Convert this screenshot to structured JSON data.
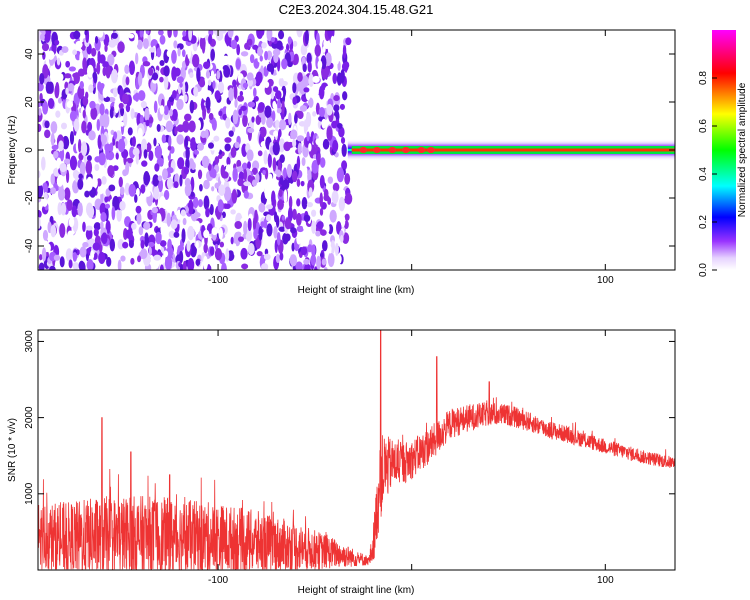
{
  "title": "C2E3.2024.304.15.48.G21",
  "chart_data": [
    {
      "type": "heatmap",
      "xlabel": "Height of straight line (km)",
      "ylabel": "Frequency (Hz)",
      "xlim": [
        -193,
        136
      ],
      "ylim": [
        -50,
        50
      ],
      "xticks": [
        -100,
        0,
        100
      ],
      "xtick_labels": [
        "-100",
        "",
        "100"
      ],
      "yticks": [
        -40,
        -20,
        0,
        20,
        40
      ],
      "ytick_labels": [
        "-40",
        "-20",
        "0",
        "20",
        "40"
      ],
      "noise_region_x": [
        -193,
        -32
      ],
      "signal_band": {
        "x_start": -33,
        "x_end": 136,
        "center_freq_hz": 0,
        "peak_amplitude": 1.0,
        "peak_x": [
          -25,
          -18,
          -10,
          -3,
          5,
          10
        ]
      },
      "colorbar": {
        "label": "Normalized spectral amplitude",
        "range": [
          0.0,
          1.0
        ],
        "ticks": [
          0.0,
          0.2,
          0.4,
          0.6,
          0.8
        ],
        "tick_labels": [
          "0.0",
          "0.2",
          "0.4",
          "0.6",
          "0.8"
        ]
      },
      "grid": false
    },
    {
      "type": "line",
      "xlabel": "Height of straight line (km)",
      "ylabel": "SNR (10 * v/v)",
      "xlim": [
        -193,
        136
      ],
      "ylim": [
        0,
        3150
      ],
      "xticks": [
        -100,
        0,
        100
      ],
      "xtick_labels": [
        "-100",
        "",
        "100"
      ],
      "yticks": [
        1000,
        2000,
        3000
      ],
      "ytick_labels": [
        "1000",
        "2000",
        "3000"
      ],
      "series_color": "#ee3333",
      "envelope": {
        "x": [
          -193,
          -180,
          -160,
          -140,
          -120,
          -100,
          -80,
          -60,
          -40,
          -30,
          -22,
          -20,
          -17,
          -15,
          -10,
          -5,
          0,
          10,
          20,
          30,
          40,
          50,
          60,
          70,
          80,
          90,
          100,
          110,
          120,
          136
        ],
        "y_mid": [
          450,
          400,
          420,
          430,
          420,
          400,
          360,
          300,
          220,
          160,
          120,
          300,
          1000,
          1300,
          1400,
          1400,
          1450,
          1650,
          1920,
          2000,
          2050,
          2030,
          1950,
          1850,
          1780,
          1700,
          1620,
          1550,
          1480,
          1400
        ],
        "y_amp": [
          450,
          480,
          550,
          550,
          520,
          480,
          420,
          330,
          200,
          120,
          60,
          250,
          500,
          500,
          320,
          280,
          260,
          240,
          200,
          180,
          160,
          140,
          130,
          120,
          110,
          105,
          100,
          95,
          90,
          85
        ]
      },
      "spikes": [
        {
          "x": -160,
          "y": 2000
        },
        {
          "x": -145,
          "y": 1550
        },
        {
          "x": -125,
          "y": 1250
        },
        {
          "x": -16,
          "y": 3150
        },
        {
          "x": 13,
          "y": 2800
        },
        {
          "x": 40,
          "y": 2470
        }
      ],
      "grid": false
    }
  ]
}
